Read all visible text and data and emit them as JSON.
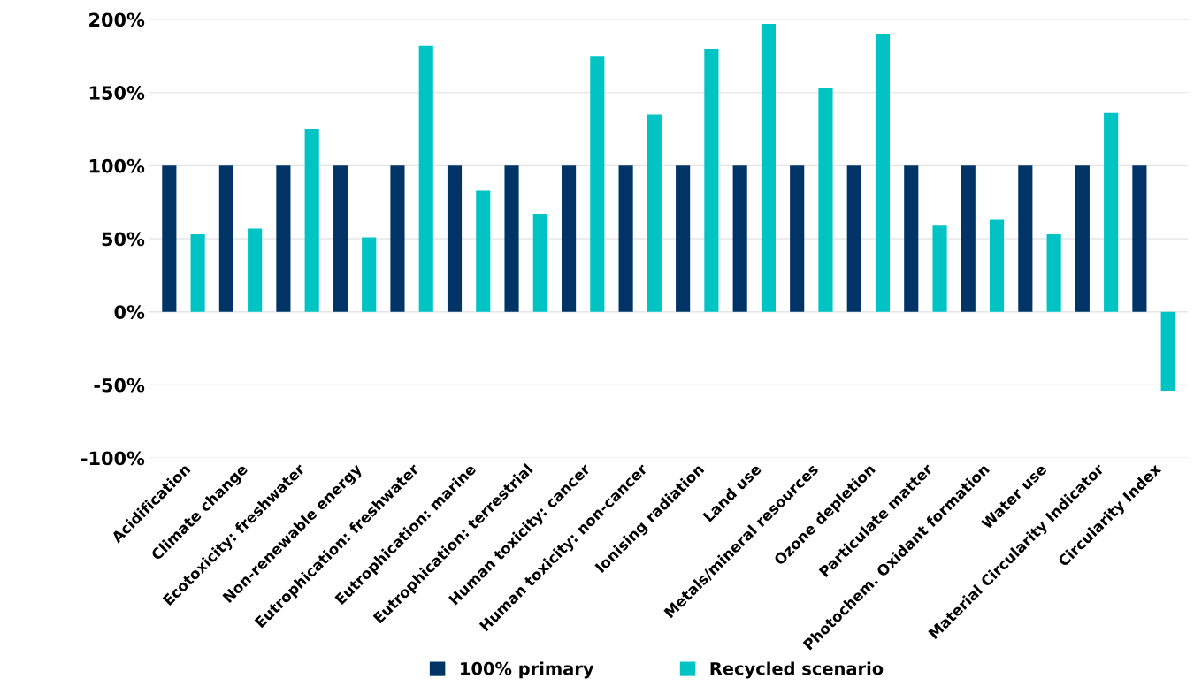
{
  "chart_data": {
    "type": "bar",
    "categories": [
      "Acidification",
      "Climate change",
      "Ecotoxicity: freshwater",
      "Non-renewable energy",
      "Eutrophication: freshwater",
      "Eutrophication: marine",
      "Eutrophication: terrestrial",
      "Human toxicity: cancer",
      "Human toxicity: non-cancer",
      "Ionising radiation",
      "Land use",
      "Metals/mineral resources",
      "Ozone depletion",
      "Particulate matter",
      "Photochem. Oxidant formation",
      "Water use",
      "Material Circularity Indicator",
      "Circularity Index"
    ],
    "series": [
      {
        "name": "100% primary",
        "color": "#003366",
        "values": [
          100,
          100,
          100,
          100,
          100,
          100,
          100,
          100,
          100,
          100,
          100,
          100,
          100,
          100,
          100,
          100,
          100,
          100
        ]
      },
      {
        "name": "Recycled scenario",
        "color": "#00c4c4",
        "values": [
          53,
          57,
          125,
          51,
          182,
          83,
          67,
          175,
          135,
          180,
          197,
          153,
          190,
          59,
          63,
          53,
          136,
          -54
        ]
      }
    ],
    "ylim": [
      -100,
      200
    ],
    "yticks": [
      {
        "value": -100,
        "label": "-100%"
      },
      {
        "value": -50,
        "label": "-50%"
      },
      {
        "value": 0,
        "label": "0%"
      },
      {
        "value": 50,
        "label": "50%"
      },
      {
        "value": 100,
        "label": "100%"
      },
      {
        "value": 150,
        "label": "150%"
      },
      {
        "value": 200,
        "label": "200%"
      }
    ],
    "grid": "y",
    "legend": "bottom"
  }
}
